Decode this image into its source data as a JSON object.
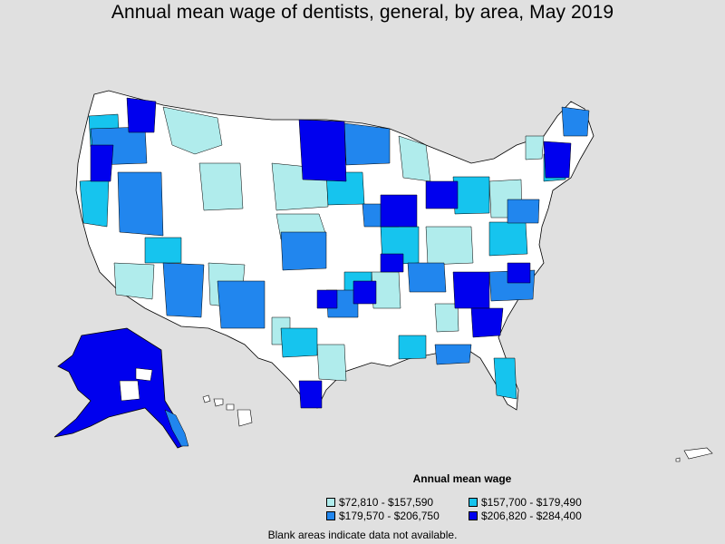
{
  "title": "Annual mean wage of dentists, general, by area, May 2019",
  "legend": {
    "title": "Annual mean wage",
    "items": [
      {
        "label": "$72,810 - $157,590",
        "color": "#b0ecec"
      },
      {
        "label": "$157,700 - $179,490",
        "color": "#16c4ee"
      },
      {
        "label": "$179,570 - $206,750",
        "color": "#2186ee"
      },
      {
        "label": "$206,820 - $284,400",
        "color": "#0000ee"
      }
    ]
  },
  "colors": {
    "background": "#e0e0e0",
    "no_data": "#ffffff",
    "border": "#000000"
  },
  "footnote": "Blank areas indicate data not available."
}
